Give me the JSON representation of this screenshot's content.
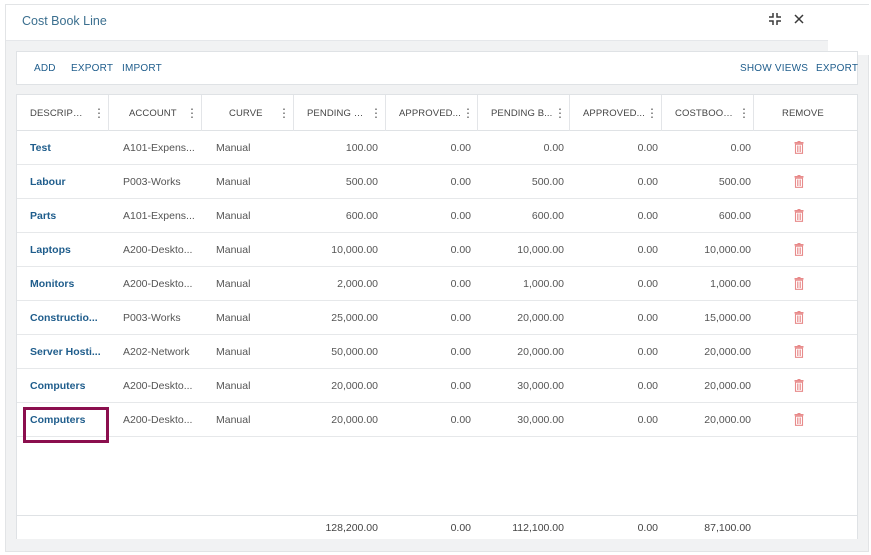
{
  "dialog": {
    "title": "Cost Book Line",
    "icons": {
      "collapse": "collapse-icon",
      "close": "close-icon"
    }
  },
  "toolbar": {
    "add_label": "ADD",
    "export_label": "EXPORT",
    "import_label": "IMPORT",
    "show_views_label": "SHOW VIEWS",
    "export_right_label": "EXPORT"
  },
  "grid": {
    "columns": [
      "DESCRIPTI...",
      "ACCOUNT",
      "CURVE",
      "PENDING E...",
      "APPROVED...",
      "PENDING B...",
      "APPROVED...",
      "COSTBOOK...",
      "REMOVE"
    ],
    "rows": [
      {
        "description": "Test",
        "account": "A101-Expens...",
        "curve": "Manual",
        "pending_e": "100.00",
        "approved_1": "0.00",
        "pending_b": "0.00",
        "approved_2": "0.00",
        "costbook": "0.00"
      },
      {
        "description": "Labour",
        "account": "P003-Works",
        "curve": "Manual",
        "pending_e": "500.00",
        "approved_1": "0.00",
        "pending_b": "500.00",
        "approved_2": "0.00",
        "costbook": "500.00"
      },
      {
        "description": "Parts",
        "account": "A101-Expens...",
        "curve": "Manual",
        "pending_e": "600.00",
        "approved_1": "0.00",
        "pending_b": "600.00",
        "approved_2": "0.00",
        "costbook": "600.00"
      },
      {
        "description": "Laptops",
        "account": "A200-Deskto...",
        "curve": "Manual",
        "pending_e": "10,000.00",
        "approved_1": "0.00",
        "pending_b": "10,000.00",
        "approved_2": "0.00",
        "costbook": "10,000.00"
      },
      {
        "description": "Monitors",
        "account": "A200-Deskto...",
        "curve": "Manual",
        "pending_e": "2,000.00",
        "approved_1": "0.00",
        "pending_b": "1,000.00",
        "approved_2": "0.00",
        "costbook": "1,000.00"
      },
      {
        "description": "Constructio...",
        "account": "P003-Works",
        "curve": "Manual",
        "pending_e": "25,000.00",
        "approved_1": "0.00",
        "pending_b": "20,000.00",
        "approved_2": "0.00",
        "costbook": "15,000.00"
      },
      {
        "description": "Server Hosti...",
        "account": "A202-Network",
        "curve": "Manual",
        "pending_e": "50,000.00",
        "approved_1": "0.00",
        "pending_b": "20,000.00",
        "approved_2": "0.00",
        "costbook": "20,000.00"
      },
      {
        "description": "Computers",
        "account": "A200-Deskto...",
        "curve": "Manual",
        "pending_e": "20,000.00",
        "approved_1": "0.00",
        "pending_b": "30,000.00",
        "approved_2": "0.00",
        "costbook": "20,000.00"
      },
      {
        "description": "Computers",
        "account": "A200-Deskto...",
        "curve": "Manual",
        "pending_e": "20,000.00",
        "approved_1": "0.00",
        "pending_b": "30,000.00",
        "approved_2": "0.00",
        "costbook": "20,000.00"
      }
    ],
    "totals": {
      "pending_e": "128,200.00",
      "approved_1": "0.00",
      "pending_b": "112,100.00",
      "approved_2": "0.00",
      "costbook": "87,100.00"
    },
    "icons": {
      "column_menu": "kebab-menu-icon",
      "remove": "trash-icon"
    },
    "colors": {
      "remove_icon": "#e88a8a",
      "link": "#1f5d8c",
      "highlight": "#8b0f4e"
    }
  }
}
